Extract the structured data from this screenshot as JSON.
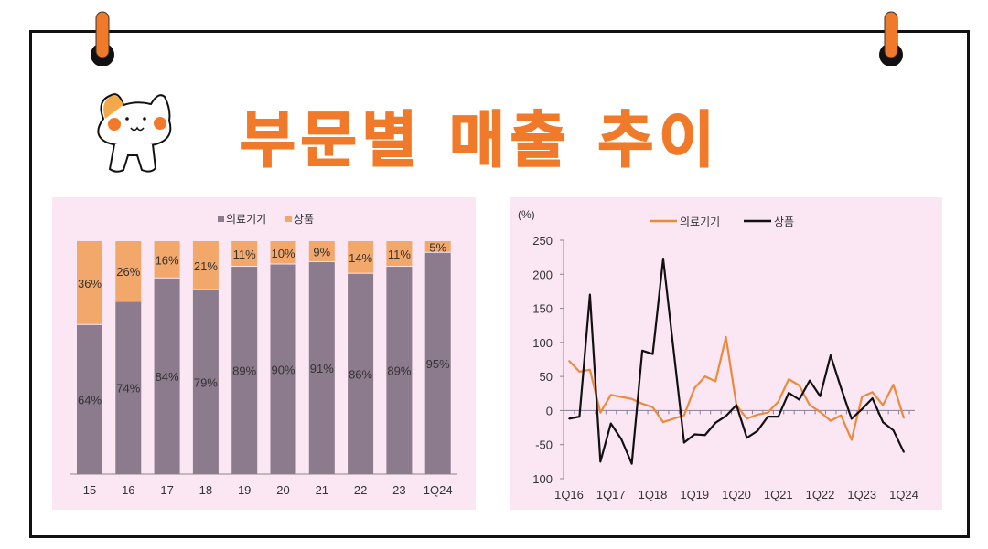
{
  "title": "부문별 매출 추이",
  "colors": {
    "accent": "#f07a2a",
    "device": "#8c7b8c",
    "product": "#f2a76b",
    "panel": "#fbe6f3",
    "line_device": "#ec8a3c",
    "line_product": "#111111"
  },
  "icons": [
    "binder-clip-icon",
    "cat-mascot-icon"
  ],
  "chart_data": [
    {
      "type": "bar",
      "stacked": true,
      "percent": true,
      "categories": [
        "15",
        "16",
        "17",
        "18",
        "19",
        "20",
        "21",
        "22",
        "23",
        "1Q24"
      ],
      "series": [
        {
          "name": "의료기기",
          "values": [
            64,
            74,
            84,
            79,
            89,
            90,
            91,
            86,
            89,
            95
          ],
          "labels": [
            "64%",
            "74%",
            "84%",
            "79%",
            "89%",
            "90%",
            "91%",
            "86%",
            "89%",
            "95%"
          ]
        },
        {
          "name": "상품",
          "values": [
            36,
            26,
            16,
            21,
            11,
            10,
            9,
            14,
            11,
            5
          ],
          "labels": [
            "36%",
            "26%",
            "16%",
            "21%",
            "11%",
            "10%",
            "9%",
            "14%",
            "11%",
            "5%"
          ]
        }
      ],
      "legend": "top",
      "grid": false
    },
    {
      "type": "line",
      "ylabel": "(%)",
      "ylim": [
        -100,
        250
      ],
      "yticks": [
        "250",
        "200",
        "150",
        "100",
        "50",
        "0",
        "-50",
        "-100"
      ],
      "ytick_values": [
        250,
        200,
        150,
        100,
        50,
        0,
        -50,
        -100
      ],
      "x_tick_labels": [
        "1Q16",
        "1Q17",
        "1Q18",
        "1Q19",
        "1Q20",
        "1Q21",
        "1Q22",
        "1Q23",
        "1Q24"
      ],
      "legend": "top",
      "grid": false,
      "series": [
        {
          "name": "의료기기",
          "values": [
            73,
            57,
            60,
            -3,
            23,
            20,
            17,
            10,
            5,
            -17,
            -12,
            -7,
            33,
            50,
            43,
            108,
            8,
            -12,
            -6,
            -3,
            13,
            46,
            37,
            8,
            -2,
            -15,
            -7,
            -43,
            20,
            27,
            8,
            38,
            -11
          ]
        },
        {
          "name": "상품",
          "values": [
            -12,
            -9,
            170,
            -75,
            -19,
            -42,
            -78,
            88,
            83,
            223,
            88,
            -47,
            -35,
            -36,
            -18,
            -8,
            8,
            -40,
            -30,
            -9,
            -9,
            26,
            16,
            44,
            21,
            81,
            33,
            -12,
            2,
            18,
            -17,
            -29,
            -61
          ]
        }
      ]
    }
  ]
}
